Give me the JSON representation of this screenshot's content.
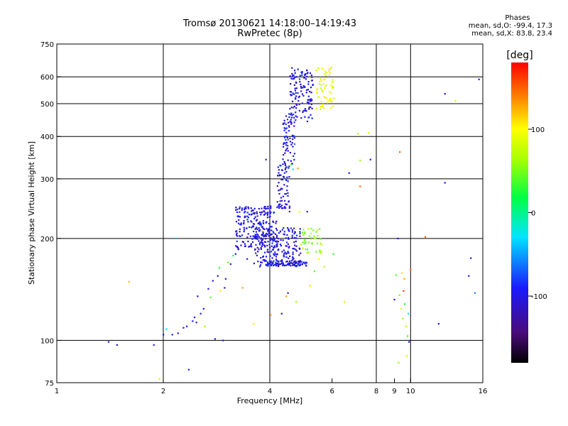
{
  "header": {
    "title": "Tromsø 20130621 14:18:00–14:19:43",
    "subtitle": "RwPretec (8p)"
  },
  "phase_info": {
    "title": "Phases",
    "line_o": "mean, sd,O: -99.4, 17.3",
    "line_x": "mean, sd,X:  83.8, 23.4"
  },
  "colorbar": {
    "unit_label": "[deg]",
    "ticks": [
      {
        "value": 100,
        "label": "100"
      },
      {
        "value": 0,
        "label": "0"
      },
      {
        "value": -100,
        "label": "-100"
      }
    ],
    "range": [
      -180,
      180
    ]
  },
  "chart_data": {
    "type": "scatter",
    "xlabel": "Frequency [MHz]",
    "ylabel": "Stationary phase Virtual Height [km]",
    "xscale": "log",
    "yscale": "log",
    "xlim": [
      1,
      16
    ],
    "ylim": [
      75,
      750
    ],
    "grid": true,
    "xticks": [
      {
        "value": 1,
        "label": "1"
      },
      {
        "value": 2,
        "label": "2"
      },
      {
        "value": 4,
        "label": "4"
      },
      {
        "value": 6,
        "label": "6"
      },
      {
        "value": 8,
        "label": "8"
      },
      {
        "value": 9,
        "label": "9"
      },
      {
        "value": 10,
        "label": "10"
      },
      {
        "value": 16,
        "label": "16"
      }
    ],
    "xgrid": [
      2,
      4,
      8,
      10
    ],
    "yticks": [
      {
        "value": 75,
        "label": "75"
      },
      {
        "value": 100,
        "label": "100"
      },
      {
        "value": 200,
        "label": "200"
      },
      {
        "value": 300,
        "label": "300"
      },
      {
        "value": 400,
        "label": "400"
      },
      {
        "value": 500,
        "label": "500"
      },
      {
        "value": 600,
        "label": "600"
      },
      {
        "value": 750,
        "label": "750"
      }
    ],
    "ygrid": [
      100,
      200,
      300,
      400,
      500,
      600
    ],
    "points": [
      [
        1.4,
        99,
        -100
      ],
      [
        1.48,
        97,
        -95
      ],
      [
        1.6,
        149,
        120
      ],
      [
        1.88,
        97,
        -100
      ],
      [
        1.95,
        77,
        110
      ],
      [
        2.0,
        104,
        -100
      ],
      [
        2.04,
        108,
        -30
      ],
      [
        2.12,
        104,
        -95
      ],
      [
        2.17,
        200,
        -40
      ],
      [
        2.2,
        105,
        -110
      ],
      [
        2.28,
        109,
        -100
      ],
      [
        2.33,
        110,
        -90
      ],
      [
        2.36,
        82,
        -100
      ],
      [
        2.42,
        114,
        -100
      ],
      [
        2.45,
        117,
        -100
      ],
      [
        2.48,
        113,
        -110
      ],
      [
        2.5,
        135,
        -100
      ],
      [
        2.55,
        120,
        -95
      ],
      [
        2.6,
        124,
        -105
      ],
      [
        2.62,
        110,
        60
      ],
      [
        2.68,
        142,
        -100
      ],
      [
        2.72,
        134,
        40
      ],
      [
        2.76,
        150,
        -100
      ],
      [
        2.8,
        101,
        -100
      ],
      [
        2.85,
        155,
        -95
      ],
      [
        2.88,
        164,
        30
      ],
      [
        2.9,
        140,
        110
      ],
      [
        2.95,
        100,
        -100
      ],
      [
        2.98,
        143,
        -100
      ],
      [
        3.0,
        152,
        -90
      ],
      [
        3.05,
        170,
        40
      ],
      [
        3.1,
        168,
        -100
      ],
      [
        3.15,
        178,
        20
      ],
      [
        3.2,
        180,
        -100
      ],
      [
        3.25,
        188,
        -110
      ],
      [
        3.35,
        143,
        130
      ],
      [
        3.45,
        174,
        -100
      ],
      [
        3.6,
        112,
        110
      ],
      [
        3.8,
        210,
        120
      ],
      [
        3.9,
        342,
        -100
      ],
      [
        4.02,
        119,
        140
      ],
      [
        4.2,
        180,
        -100
      ],
      [
        4.32,
        120,
        -100
      ],
      [
        4.45,
        135,
        130
      ],
      [
        4.5,
        138,
        -100
      ],
      [
        4.6,
        330,
        40
      ],
      [
        4.65,
        320,
        -30
      ],
      [
        4.7,
        380,
        -60
      ],
      [
        4.75,
        130,
        60
      ],
      [
        4.8,
        322,
        130
      ],
      [
        4.85,
        240,
        100
      ],
      [
        4.9,
        192,
        80
      ],
      [
        4.95,
        208,
        40
      ],
      [
        5.1,
        240,
        -90
      ],
      [
        5.2,
        145,
        110
      ],
      [
        5.35,
        160,
        40
      ],
      [
        5.5,
        174,
        100
      ],
      [
        5.7,
        165,
        70
      ],
      [
        6.05,
        180,
        30
      ],
      [
        6.5,
        130,
        110
      ],
      [
        6.7,
        312,
        -100
      ],
      [
        7.1,
        408,
        60
      ],
      [
        7.2,
        285,
        150
      ],
      [
        7.2,
        340,
        60
      ],
      [
        7.6,
        410,
        80
      ],
      [
        7.7,
        342,
        -100
      ],
      [
        9.0,
        132,
        -100
      ],
      [
        9.1,
        156,
        40
      ],
      [
        9.2,
        200,
        -100
      ],
      [
        9.25,
        86,
        60
      ],
      [
        9.3,
        136,
        50
      ],
      [
        9.32,
        360,
        150
      ],
      [
        9.4,
        124,
        80
      ],
      [
        9.45,
        158,
        110
      ],
      [
        9.5,
        116,
        60
      ],
      [
        9.55,
        140,
        160
      ],
      [
        9.6,
        152,
        130
      ],
      [
        9.62,
        128,
        20
      ],
      [
        9.7,
        110,
        70
      ],
      [
        9.75,
        90,
        80
      ],
      [
        9.8,
        103,
        30
      ],
      [
        9.85,
        120,
        -30
      ],
      [
        9.9,
        99,
        -100
      ],
      [
        10.0,
        162,
        150
      ],
      [
        11.0,
        202,
        150
      ],
      [
        12.0,
        112,
        -100
      ],
      [
        12.5,
        292,
        -100
      ],
      [
        12.5,
        535,
        -110
      ],
      [
        13.4,
        510,
        110
      ],
      [
        14.6,
        155,
        -100
      ],
      [
        14.8,
        175,
        -100
      ],
      [
        15.2,
        138,
        -60
      ],
      [
        15.6,
        590,
        -95
      ]
    ],
    "clusters": [
      {
        "f": [
          3.2,
          4.2
        ],
        "h": [
          185,
          250
        ],
        "n": 230,
        "phase": -100,
        "seed": 11
      },
      {
        "f": [
          3.6,
          4.9
        ],
        "h": [
          165,
          215
        ],
        "n": 200,
        "phase": -100,
        "seed": 12
      },
      {
        "f": [
          3.9,
          5.1
        ],
        "h": [
          166,
          172
        ],
        "n": 80,
        "phase": -100,
        "seed": 13
      },
      {
        "f": [
          4.2,
          4.55
        ],
        "h": [
          240,
          330
        ],
        "n": 70,
        "phase": -100,
        "seed": 14
      },
      {
        "f": [
          4.35,
          4.7
        ],
        "h": [
          330,
          470
        ],
        "n": 70,
        "phase": -100,
        "seed": 15
      },
      {
        "f": [
          4.55,
          5.3
        ],
        "h": [
          440,
          640
        ],
        "n": 130,
        "phase": -100,
        "seed": 16
      },
      {
        "f": [
          4.9,
          5.6
        ],
        "h": [
          180,
          215
        ],
        "n": 40,
        "phase": 60,
        "seed": 17
      },
      {
        "f": [
          5.4,
          6.1
        ],
        "h": [
          480,
          640
        ],
        "n": 60,
        "phase": 90,
        "seed": 18
      }
    ]
  }
}
